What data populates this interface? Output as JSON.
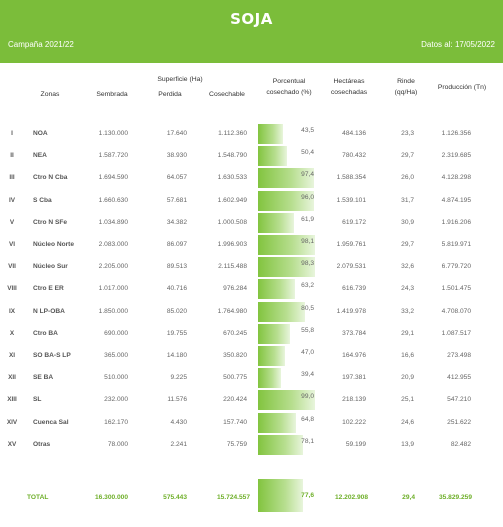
{
  "header": {
    "title": "SOJA",
    "campaign": "Campaña 2021/22",
    "date": "Datos al: 17/05/2022"
  },
  "columns": {
    "zonas": "Zonas",
    "superficie_group": "Superficie (Ha)",
    "sembrada": "Sembrada",
    "perdida": "Perdida",
    "cosechable": "Cosechable",
    "porcentual_1": "Porcentual",
    "porcentual_2": "cosechado (%)",
    "hectareas_1": "Hectáreas",
    "hectareas_2": "cosechadas",
    "rinde_1": "Rinde",
    "rinde_2": "(qq/Ha)",
    "produccion": "Producción (Tn)"
  },
  "rows": [
    {
      "roman": "I",
      "zona": "NOA",
      "sembrada": "1.130.000",
      "perdida": "17.640",
      "cosechable": "1.112.360",
      "pct": "43,5",
      "pct_value": 43.5,
      "cosechadas": "484.136",
      "rinde": "23,3",
      "produccion": "1.126.356"
    },
    {
      "roman": "II",
      "zona": "NEA",
      "sembrada": "1.587.720",
      "perdida": "38.930",
      "cosechable": "1.548.790",
      "pct": "50,4",
      "pct_value": 50.4,
      "cosechadas": "780.432",
      "rinde": "29,7",
      "produccion": "2.319.685"
    },
    {
      "roman": "III",
      "zona": "Ctro N Cba",
      "sembrada": "1.694.590",
      "perdida": "64.057",
      "cosechable": "1.630.533",
      "pct": "97,4",
      "pct_value": 97.4,
      "cosechadas": "1.588.354",
      "rinde": "26,0",
      "produccion": "4.128.298"
    },
    {
      "roman": "IV",
      "zona": "S Cba",
      "sembrada": "1.660.630",
      "perdida": "57.681",
      "cosechable": "1.602.949",
      "pct": "96,0",
      "pct_value": 96.0,
      "cosechadas": "1.539.101",
      "rinde": "31,7",
      "produccion": "4.874.195"
    },
    {
      "roman": "V",
      "zona": "Ctro N SFe",
      "sembrada": "1.034.890",
      "perdida": "34.382",
      "cosechable": "1.000.508",
      "pct": "61,9",
      "pct_value": 61.9,
      "cosechadas": "619.172",
      "rinde": "30,9",
      "produccion": "1.916.206"
    },
    {
      "roman": "VI",
      "zona": "Núcleo Norte",
      "sembrada": "2.083.000",
      "perdida": "86.097",
      "cosechable": "1.996.903",
      "pct": "98,1",
      "pct_value": 98.1,
      "cosechadas": "1.959.761",
      "rinde": "29,7",
      "produccion": "5.819.971"
    },
    {
      "roman": "VII",
      "zona": "Núcleo Sur",
      "sembrada": "2.205.000",
      "perdida": "89.513",
      "cosechable": "2.115.488",
      "pct": "98,3",
      "pct_value": 98.3,
      "cosechadas": "2.079.531",
      "rinde": "32,6",
      "produccion": "6.779.720"
    },
    {
      "roman": "VIII",
      "zona": "Ctro E ER",
      "sembrada": "1.017.000",
      "perdida": "40.716",
      "cosechable": "976.284",
      "pct": "63,2",
      "pct_value": 63.2,
      "cosechadas": "616.739",
      "rinde": "24,3",
      "produccion": "1.501.475"
    },
    {
      "roman": "IX",
      "zona": "N LP-OBA",
      "sembrada": "1.850.000",
      "perdida": "85.020",
      "cosechable": "1.764.980",
      "pct": "80,5",
      "pct_value": 80.5,
      "cosechadas": "1.419.978",
      "rinde": "33,2",
      "produccion": "4.708.070"
    },
    {
      "roman": "X",
      "zona": "Ctro BA",
      "sembrada": "690.000",
      "perdida": "19.755",
      "cosechable": "670.245",
      "pct": "55,8",
      "pct_value": 55.8,
      "cosechadas": "373.784",
      "rinde": "29,1",
      "produccion": "1.087.517"
    },
    {
      "roman": "XI",
      "zona": "SO BA-S LP",
      "sembrada": "365.000",
      "perdida": "14.180",
      "cosechable": "350.820",
      "pct": "47,0",
      "pct_value": 47.0,
      "cosechadas": "164.976",
      "rinde": "16,6",
      "produccion": "273.498"
    },
    {
      "roman": "XII",
      "zona": "SE BA",
      "sembrada": "510.000",
      "perdida": "9.225",
      "cosechable": "500.775",
      "pct": "39,4",
      "pct_value": 39.4,
      "cosechadas": "197.381",
      "rinde": "20,9",
      "produccion": "412.955"
    },
    {
      "roman": "XIII",
      "zona": "SL",
      "sembrada": "232.000",
      "perdida": "11.576",
      "cosechable": "220.424",
      "pct": "99,0",
      "pct_value": 99.0,
      "cosechadas": "218.139",
      "rinde": "25,1",
      "produccion": "547.210"
    },
    {
      "roman": "XIV",
      "zona": "Cuenca Sal",
      "sembrada": "162.170",
      "perdida": "4.430",
      "cosechable": "157.740",
      "pct": "64,8",
      "pct_value": 64.8,
      "cosechadas": "102.222",
      "rinde": "24,6",
      "produccion": "251.622"
    },
    {
      "roman": "XV",
      "zona": "Otras",
      "sembrada": "78.000",
      "perdida": "2.241",
      "cosechable": "75.759",
      "pct": "78,1",
      "pct_value": 78.1,
      "cosechadas": "59.199",
      "rinde": "13,9",
      "produccion": "82.482"
    }
  ],
  "total": {
    "label": "TOTAL",
    "sembrada": "16.300.000",
    "perdida": "575.443",
    "cosechable": "15.724.557",
    "pct": "77,6",
    "pct_value": 77.6,
    "cosechadas": "12.202.908",
    "rinde": "29,4",
    "produccion": "35.829.259"
  },
  "colors": {
    "accent": "#7bbd3a",
    "total_text": "#6eaf29"
  }
}
